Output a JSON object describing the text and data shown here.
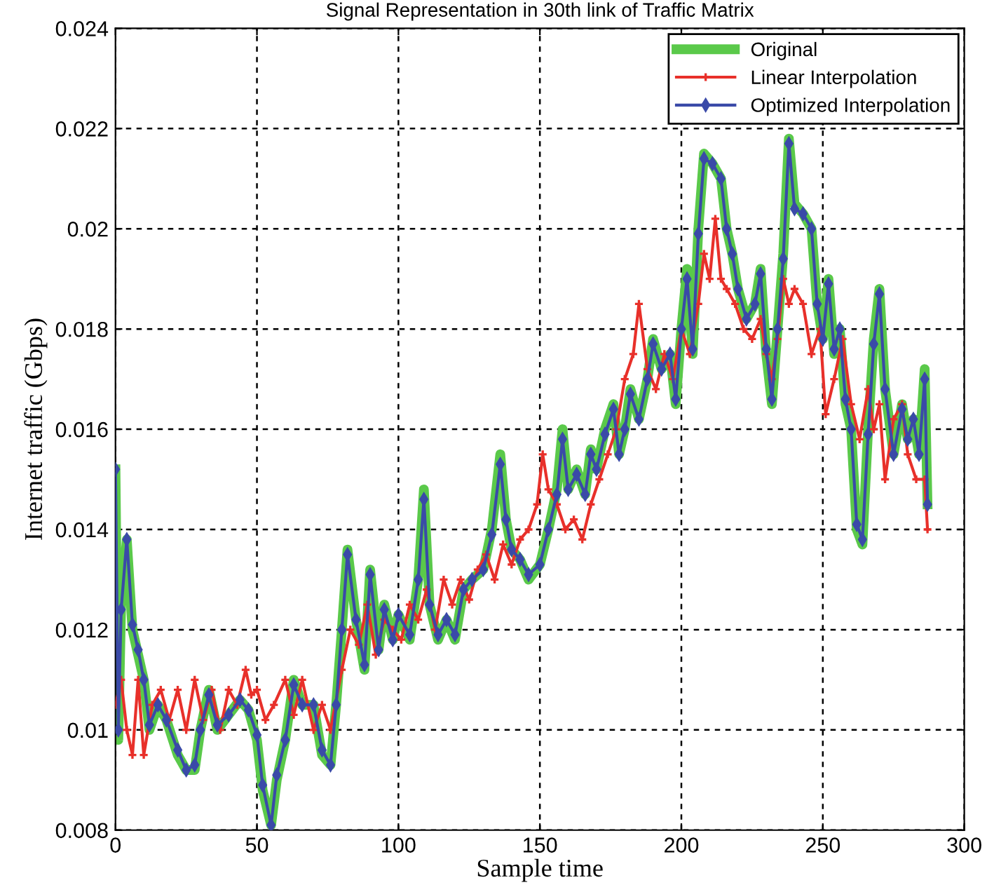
{
  "chart_data": {
    "type": "line",
    "title": "Signal Representation in 30th link of Traffic Matrix",
    "xlabel": "Sample time",
    "ylabel": "Internet traffic (Gbps)",
    "xlim": [
      0,
      300
    ],
    "xticks": [
      0,
      50,
      100,
      150,
      200,
      250,
      300
    ],
    "ylim": [
      0.008,
      0.024
    ],
    "yticks": [
      0.008,
      0.01,
      0.012,
      0.014,
      0.016,
      0.018,
      0.02,
      0.022,
      0.024
    ],
    "grid": true,
    "legend": "top right",
    "line_style": "solid",
    "series": [
      {
        "name": "Original",
        "color": "#5ac94a",
        "marker": "none",
        "x": [
          0,
          1,
          2,
          4,
          6,
          8,
          10,
          12,
          15,
          18,
          22,
          25,
          28,
          30,
          33,
          36,
          40,
          44,
          47,
          50,
          52,
          55,
          57,
          60,
          63,
          66,
          70,
          73,
          76,
          78,
          80,
          82,
          85,
          88,
          90,
          93,
          95,
          98,
          100,
          104,
          107,
          109,
          111,
          114,
          117,
          120,
          123,
          126,
          130,
          133,
          136,
          138,
          140,
          143,
          146,
          150,
          153,
          156,
          158,
          160,
          163,
          166,
          168,
          170,
          173,
          176,
          178,
          180,
          182,
          185,
          188,
          190,
          193,
          196,
          198,
          200,
          202,
          204,
          206,
          208,
          211,
          214,
          216,
          218,
          220,
          223,
          226,
          228,
          230,
          232,
          234,
          236,
          238,
          240,
          243,
          246,
          248,
          250,
          252,
          254,
          256,
          258,
          260,
          262,
          264,
          266,
          268,
          270,
          272,
          275,
          278,
          280,
          282,
          284,
          286,
          287
        ],
        "values": [
          0.0152,
          0.0098,
          0.0125,
          0.0138,
          0.012,
          0.0115,
          0.011,
          0.01,
          0.0105,
          0.0102,
          0.0095,
          0.0092,
          0.0092,
          0.01,
          0.0108,
          0.01,
          0.0103,
          0.0106,
          0.0104,
          0.0098,
          0.0088,
          0.0081,
          0.009,
          0.0098,
          0.011,
          0.0105,
          0.0105,
          0.0095,
          0.0093,
          0.0105,
          0.012,
          0.0136,
          0.0122,
          0.0112,
          0.0132,
          0.0116,
          0.0125,
          0.0118,
          0.0123,
          0.0118,
          0.013,
          0.0148,
          0.0125,
          0.0118,
          0.0122,
          0.0118,
          0.0128,
          0.013,
          0.0132,
          0.014,
          0.0155,
          0.0142,
          0.0136,
          0.0134,
          0.013,
          0.0133,
          0.014,
          0.0148,
          0.016,
          0.0148,
          0.0152,
          0.0147,
          0.0156,
          0.0152,
          0.016,
          0.0165,
          0.0155,
          0.016,
          0.0168,
          0.0162,
          0.017,
          0.0178,
          0.0172,
          0.0175,
          0.0165,
          0.018,
          0.0192,
          0.0175,
          0.02,
          0.0215,
          0.0213,
          0.021,
          0.02,
          0.0195,
          0.0188,
          0.0182,
          0.0185,
          0.0192,
          0.0175,
          0.0165,
          0.018,
          0.0195,
          0.0218,
          0.0205,
          0.0203,
          0.02,
          0.0185,
          0.0178,
          0.019,
          0.0175,
          0.018,
          0.0165,
          0.016,
          0.014,
          0.0137,
          0.016,
          0.0178,
          0.0188,
          0.0168,
          0.0155,
          0.0165,
          0.0158,
          0.0162,
          0.0155,
          0.0172,
          0.0145
        ]
      },
      {
        "name": "Linear Interpolation",
        "color": "#e8302a",
        "marker": "cross",
        "x": [
          0,
          2,
          4,
          6,
          8,
          10,
          13,
          16,
          19,
          22,
          25,
          28,
          31,
          34,
          37,
          40,
          43,
          46,
          48,
          50,
          53,
          56,
          60,
          63,
          66,
          70,
          73,
          76,
          80,
          83,
          86,
          89,
          92,
          95,
          98,
          101,
          104,
          107,
          110,
          113,
          116,
          119,
          122,
          125,
          128,
          131,
          134,
          137,
          140,
          143,
          146,
          149,
          151,
          153,
          156,
          159,
          162,
          165,
          168,
          171,
          174,
          177,
          180,
          183,
          185,
          188,
          191,
          194,
          197,
          200,
          203,
          206,
          208,
          210,
          212,
          214,
          216,
          219,
          222,
          225,
          228,
          230,
          232,
          234,
          236,
          238,
          240,
          243,
          246,
          249,
          251,
          254,
          257,
          260,
          263,
          266,
          268,
          270,
          272,
          275,
          278,
          280,
          283,
          286,
          287
        ],
        "values": [
          0.0105,
          0.011,
          0.01,
          0.0095,
          0.011,
          0.0095,
          0.0105,
          0.0108,
          0.0102,
          0.0108,
          0.01,
          0.011,
          0.0102,
          0.0108,
          0.01,
          0.0108,
          0.0105,
          0.0112,
          0.0107,
          0.0108,
          0.0102,
          0.0105,
          0.011,
          0.0103,
          0.011,
          0.01,
          0.0105,
          0.01,
          0.0112,
          0.012,
          0.0117,
          0.0125,
          0.0115,
          0.0122,
          0.012,
          0.0118,
          0.0125,
          0.0122,
          0.0128,
          0.012,
          0.013,
          0.0125,
          0.013,
          0.0126,
          0.0132,
          0.0135,
          0.013,
          0.0137,
          0.0133,
          0.0138,
          0.014,
          0.0145,
          0.0155,
          0.0148,
          0.0145,
          0.014,
          0.0142,
          0.0138,
          0.0145,
          0.015,
          0.0155,
          0.016,
          0.017,
          0.0175,
          0.0185,
          0.0172,
          0.0168,
          0.0175,
          0.017,
          0.018,
          0.0175,
          0.0185,
          0.0195,
          0.019,
          0.0202,
          0.019,
          0.0188,
          0.0185,
          0.018,
          0.0178,
          0.0182,
          0.0175,
          0.017,
          0.0178,
          0.019,
          0.0185,
          0.0188,
          0.0185,
          0.0175,
          0.018,
          0.0163,
          0.017,
          0.0178,
          0.0165,
          0.0158,
          0.0168,
          0.016,
          0.0165,
          0.015,
          0.0162,
          0.0165,
          0.0155,
          0.015,
          0.015,
          0.014
        ]
      },
      {
        "name": "Optimized Interpolation",
        "color": "#3a4aa8",
        "marker": "diamond",
        "x": [
          0,
          1,
          2,
          4,
          6,
          8,
          10,
          12,
          15,
          18,
          22,
          25,
          28,
          30,
          33,
          36,
          40,
          44,
          47,
          50,
          52,
          55,
          57,
          60,
          63,
          66,
          70,
          73,
          76,
          78,
          80,
          82,
          85,
          88,
          90,
          93,
          95,
          98,
          100,
          104,
          107,
          109,
          111,
          114,
          117,
          120,
          123,
          126,
          130,
          133,
          136,
          138,
          140,
          143,
          146,
          150,
          153,
          156,
          158,
          160,
          163,
          166,
          168,
          170,
          173,
          176,
          178,
          180,
          182,
          185,
          188,
          190,
          193,
          196,
          198,
          200,
          202,
          204,
          206,
          208,
          211,
          214,
          216,
          218,
          220,
          223,
          226,
          228,
          230,
          232,
          234,
          236,
          238,
          240,
          243,
          246,
          248,
          250,
          252,
          254,
          256,
          258,
          260,
          262,
          264,
          266,
          268,
          270,
          272,
          275,
          278,
          280,
          282,
          284,
          286,
          287
        ],
        "values": [
          0.0152,
          0.01,
          0.0124,
          0.0138,
          0.0121,
          0.0116,
          0.011,
          0.0101,
          0.0105,
          0.0102,
          0.0096,
          0.0092,
          0.0093,
          0.01,
          0.0107,
          0.0101,
          0.0103,
          0.0106,
          0.0104,
          0.0099,
          0.0089,
          0.0081,
          0.0091,
          0.0098,
          0.0109,
          0.0105,
          0.0105,
          0.0096,
          0.0093,
          0.0105,
          0.012,
          0.0135,
          0.0122,
          0.0113,
          0.0131,
          0.0116,
          0.0124,
          0.0118,
          0.0123,
          0.0119,
          0.013,
          0.0146,
          0.0125,
          0.0119,
          0.0122,
          0.0119,
          0.0128,
          0.013,
          0.0132,
          0.0139,
          0.0153,
          0.0142,
          0.0136,
          0.0134,
          0.0131,
          0.0133,
          0.014,
          0.0147,
          0.0158,
          0.0148,
          0.0151,
          0.0147,
          0.0155,
          0.0152,
          0.0159,
          0.0164,
          0.0155,
          0.016,
          0.0167,
          0.0162,
          0.017,
          0.0177,
          0.0172,
          0.0175,
          0.0166,
          0.018,
          0.019,
          0.0176,
          0.0199,
          0.0214,
          0.0213,
          0.021,
          0.02,
          0.0195,
          0.0188,
          0.0182,
          0.0185,
          0.0191,
          0.0176,
          0.0166,
          0.018,
          0.0194,
          0.0217,
          0.0204,
          0.0203,
          0.02,
          0.0185,
          0.0178,
          0.0189,
          0.0176,
          0.018,
          0.0166,
          0.016,
          0.0141,
          0.0138,
          0.0159,
          0.0177,
          0.0187,
          0.0168,
          0.0155,
          0.0164,
          0.0158,
          0.0162,
          0.0155,
          0.017,
          0.0145
        ]
      }
    ]
  }
}
